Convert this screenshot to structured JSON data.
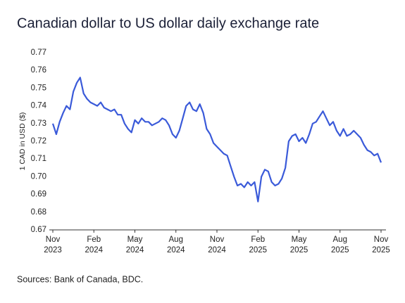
{
  "chart_data": {
    "type": "line",
    "title": "Canadian dollar to US dollar daily exchange rate",
    "ylabel": "1 CAD in USD ($)",
    "source": "Sources: Bank of Canada, BDC.",
    "categories": [
      "Nov 2023",
      null,
      null,
      null,
      null,
      null,
      null,
      null,
      null,
      null,
      null,
      null,
      "Feb 2024",
      null,
      null,
      null,
      null,
      null,
      null,
      null,
      null,
      null,
      null,
      null,
      "May 2024",
      null,
      null,
      null,
      null,
      null,
      null,
      null,
      null,
      null,
      null,
      null,
      "Aug 2024",
      null,
      null,
      null,
      null,
      null,
      null,
      null,
      null,
      null,
      null,
      null,
      "Nov 2024",
      null,
      null,
      null,
      null,
      null,
      null,
      null,
      null,
      null,
      null,
      null,
      "Feb 2025",
      null,
      null,
      null,
      null,
      null,
      null,
      null,
      null,
      null,
      null,
      null,
      "May 2025",
      null,
      null,
      null,
      null,
      null,
      null,
      null,
      null,
      null,
      null,
      null,
      "Aug 2025",
      null,
      null,
      null,
      null,
      null,
      null,
      null,
      null,
      null,
      null,
      null,
      "Nov 2025"
    ],
    "series": [
      {
        "name": "CAD/USD",
        "color": "#3a5ad9",
        "values": [
          0.73,
          0.724,
          0.731,
          0.736,
          0.74,
          0.738,
          0.748,
          0.753,
          0.756,
          0.747,
          0.744,
          0.742,
          0.741,
          0.74,
          0.742,
          0.739,
          0.738,
          0.737,
          0.738,
          0.735,
          0.735,
          0.73,
          0.727,
          0.725,
          0.732,
          0.73,
          0.733,
          0.731,
          0.731,
          0.729,
          0.73,
          0.731,
          0.733,
          0.732,
          0.729,
          0.724,
          0.722,
          0.726,
          0.733,
          0.74,
          0.742,
          0.738,
          0.737,
          0.741,
          0.736,
          0.727,
          0.724,
          0.719,
          0.717,
          0.715,
          0.713,
          0.712,
          0.706,
          0.7,
          0.695,
          0.696,
          0.694,
          0.697,
          0.695,
          0.697,
          0.686,
          0.7,
          0.704,
          0.703,
          0.697,
          0.695,
          0.696,
          0.699,
          0.705,
          0.72,
          0.723,
          0.724,
          0.72,
          0.722,
          0.719,
          0.724,
          0.73,
          0.731,
          0.734,
          0.737,
          0.733,
          0.729,
          0.731,
          0.726,
          0.723,
          0.727,
          0.723,
          0.724,
          0.726,
          0.724,
          0.722,
          0.718,
          0.715,
          0.714,
          0.712,
          0.713,
          0.708
        ]
      }
    ],
    "ylim": [
      0.67,
      0.77
    ],
    "yticks": [
      {
        "value": 0.67,
        "label": "0.67"
      },
      {
        "value": 0.68,
        "label": "0.68"
      },
      {
        "value": 0.69,
        "label": "0.69"
      },
      {
        "value": 0.7,
        "label": "0.70"
      },
      {
        "value": 0.71,
        "label": "0.71"
      },
      {
        "value": 0.72,
        "label": "0.72"
      },
      {
        "value": 0.73,
        "label": "0.73"
      },
      {
        "value": 0.74,
        "label": "0.74"
      },
      {
        "value": 0.75,
        "label": "0.75"
      },
      {
        "value": 0.76,
        "label": "0.76"
      },
      {
        "value": 0.77,
        "label": "0.77"
      }
    ],
    "grid": false
  }
}
